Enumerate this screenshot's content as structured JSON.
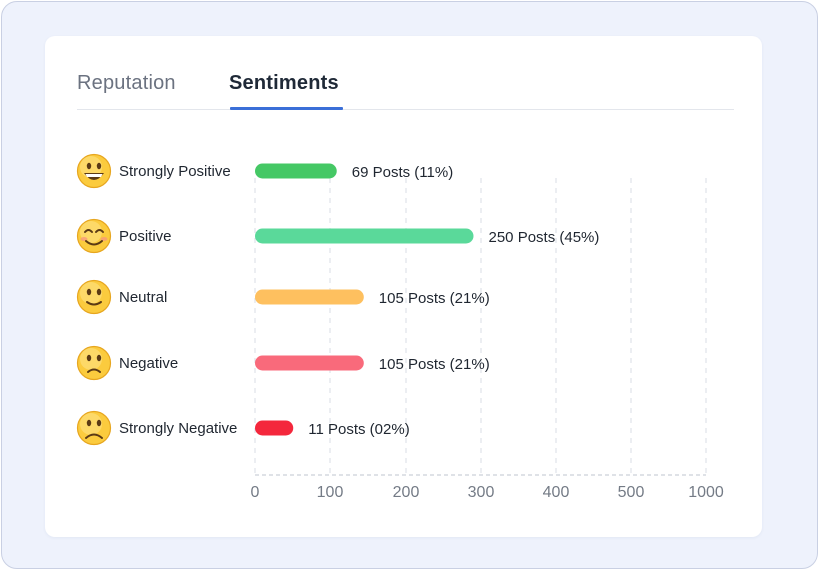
{
  "tabs": [
    {
      "label": "Reputation",
      "active": false
    },
    {
      "label": "Sentiments",
      "active": true
    }
  ],
  "colors": {
    "tab_active_underline": "#3b6fd8",
    "strongly_positive": "#45c865",
    "positive": "#5ad99a",
    "neutral": "#fec05f",
    "negative": "#f96a7b",
    "strongly_negative": "#f4273c"
  },
  "chart_data": {
    "type": "bar",
    "orientation": "horizontal",
    "categories": [
      "Strongly Positive",
      "Positive",
      "Neutral",
      "Negative",
      "Strongly Negative"
    ],
    "category_icons": [
      "grinning-face-icon",
      "smiling-face-icon",
      "slightly-smiling-face-icon",
      "slightly-frowning-face-icon",
      "frowning-face-icon"
    ],
    "values": [
      69,
      250,
      105,
      105,
      11
    ],
    "data_labels": [
      "69 Posts (11%)",
      "250 Posts (45%)",
      "105 Posts (21%)",
      "105 Posts (21%)",
      "11 Posts (02%)"
    ],
    "bar_colors": [
      "#45c865",
      "#5ad99a",
      "#fec05f",
      "#f96a7b",
      "#f4273c"
    ],
    "x_ticks": [
      0,
      100,
      200,
      300,
      400,
      500,
      1000
    ],
    "x_tick_labels": [
      "0",
      "100",
      "200",
      "300",
      "400",
      "500",
      "1000"
    ],
    "xlabel": "",
    "ylabel": "",
    "grid": "vertical dashed"
  }
}
